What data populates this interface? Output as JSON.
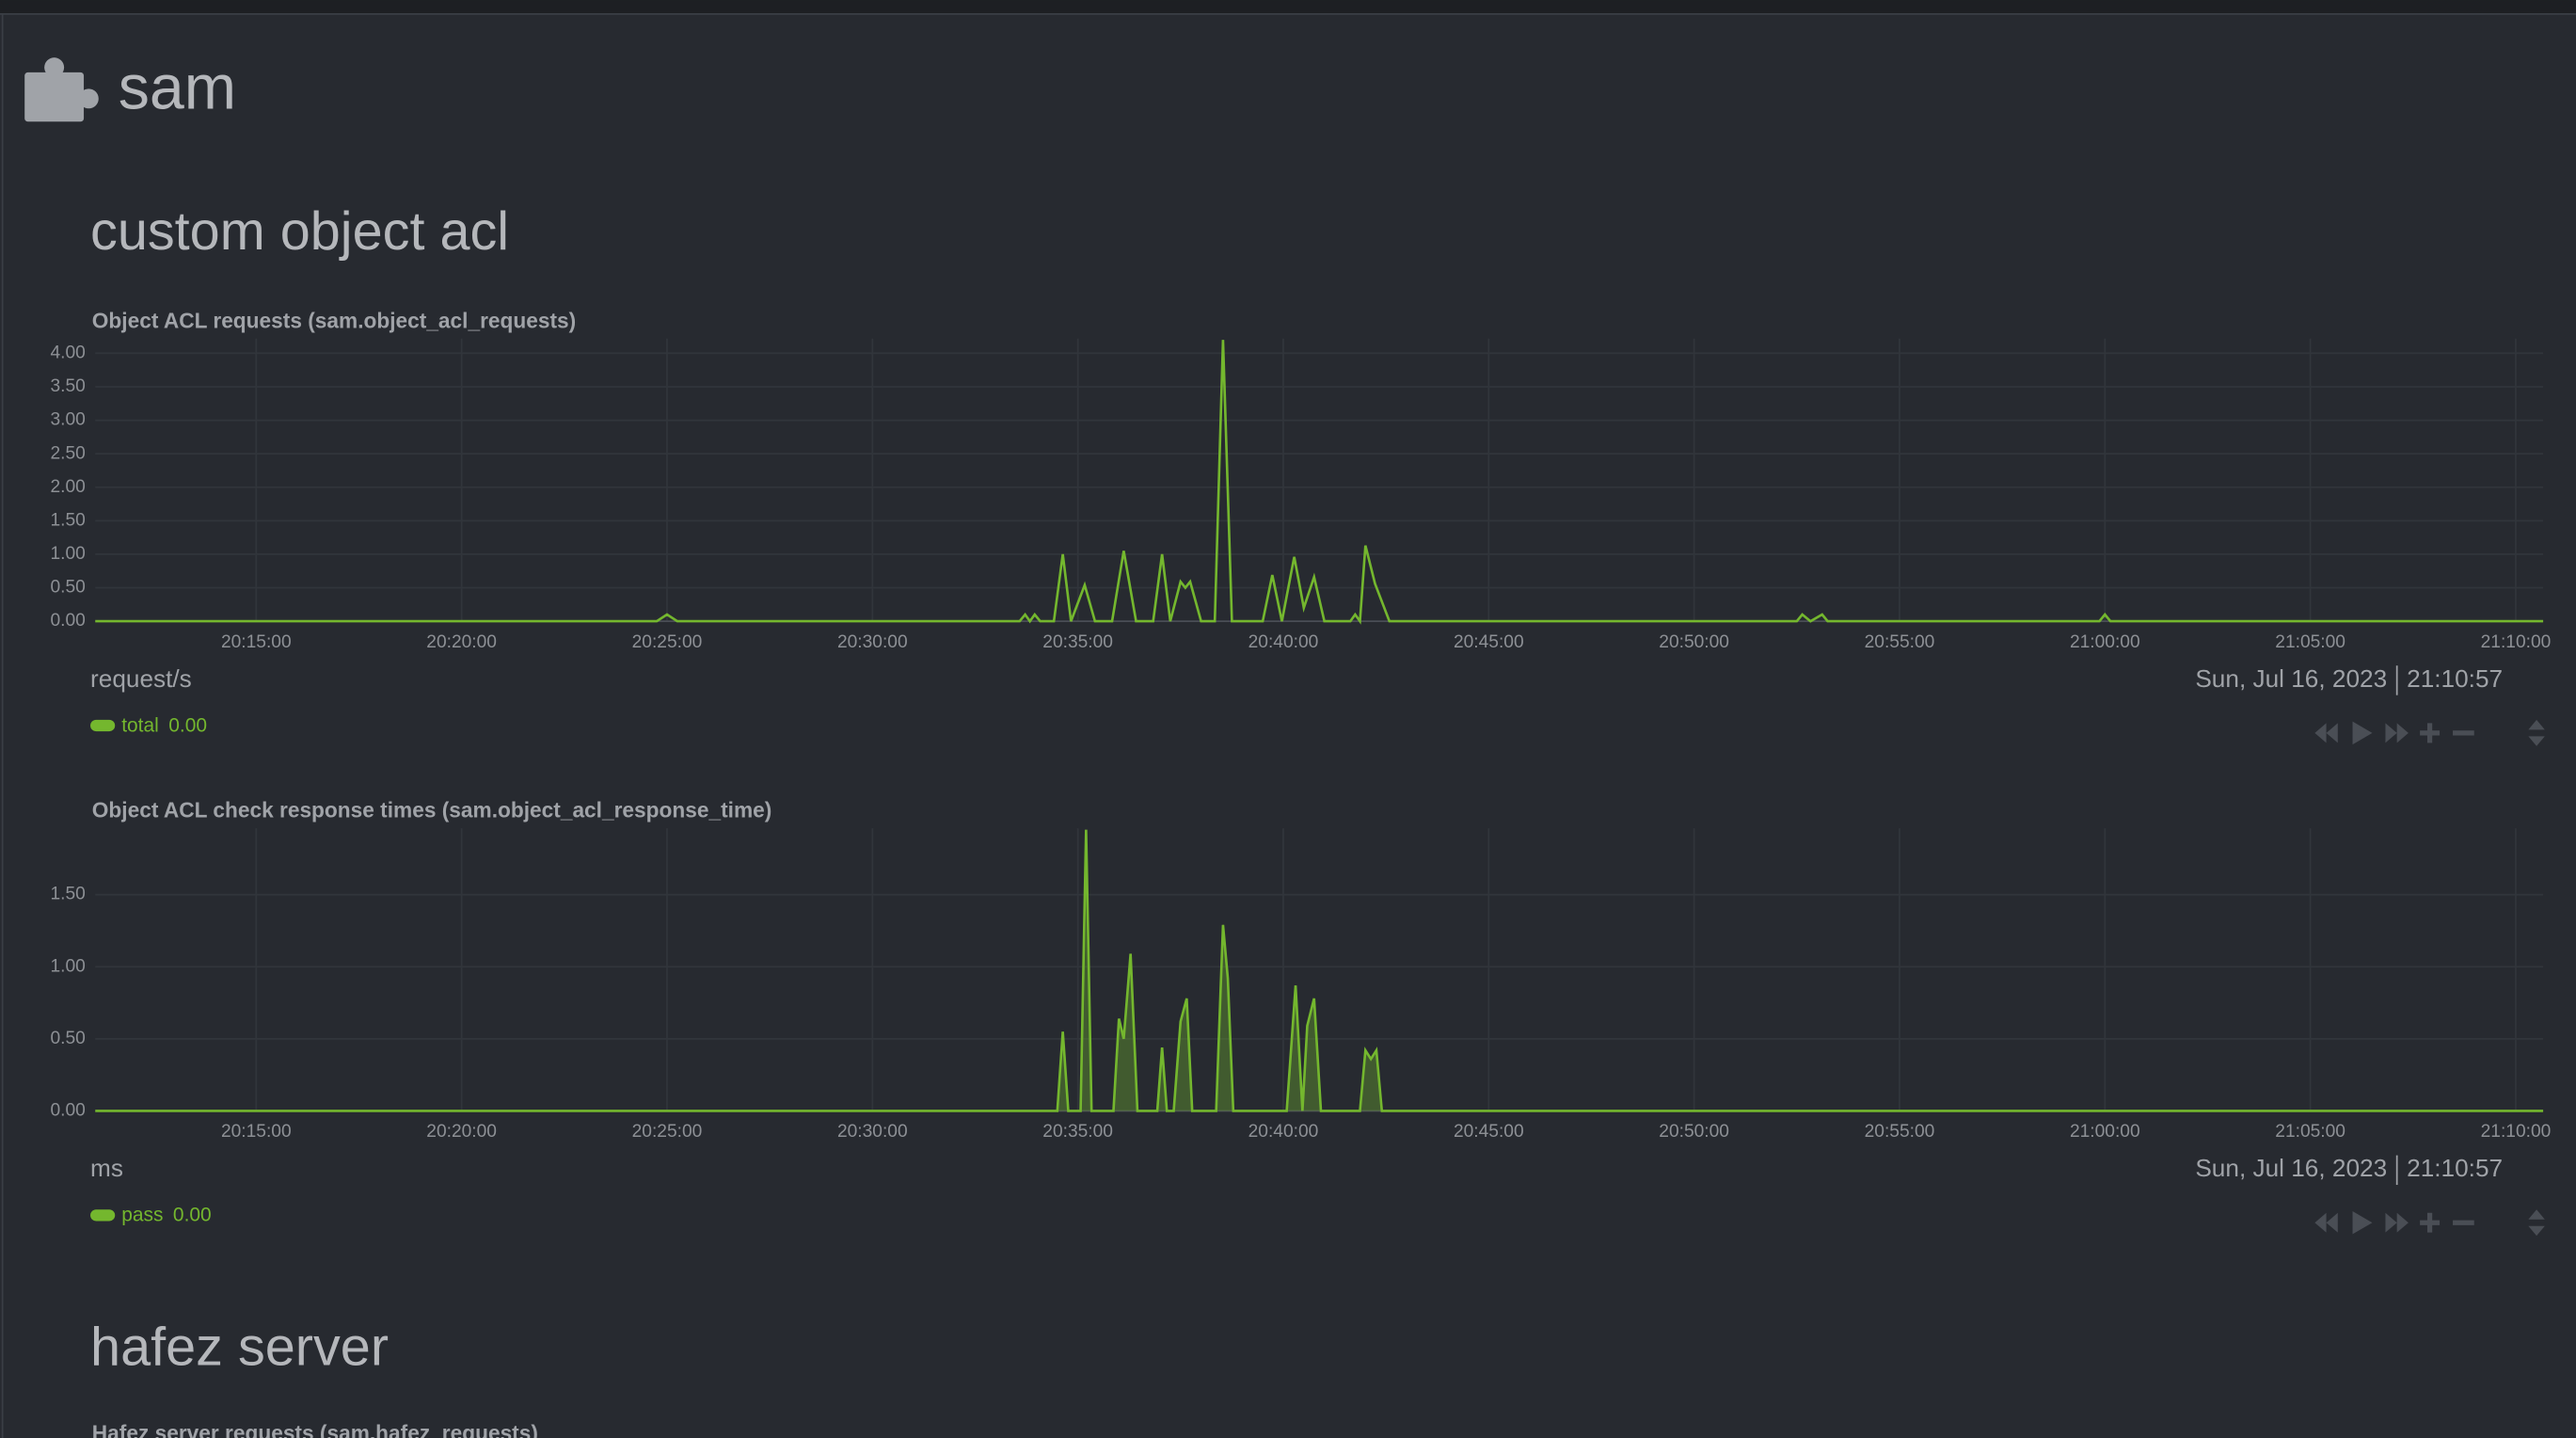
{
  "header": {
    "title": "sam"
  },
  "sections": [
    "custom object acl",
    "hafez server"
  ],
  "next_chart_title": "Hafez server requests (sam.hafez_requests)",
  "chart_data": [
    {
      "type": "line",
      "title": "Object ACL requests (sam.object_acl_requests)",
      "unit": "request/s",
      "date": "Sun, Jul 16, 2023",
      "time": "21:10:57",
      "x": [
        "20:11:05",
        "20:24:45",
        "20:25:00",
        "20:25:15",
        "20:33:35",
        "20:33:43",
        "20:33:50",
        "20:33:57",
        "20:34:05",
        "20:34:25",
        "20:34:38",
        "20:34:50",
        "20:35:10",
        "20:35:25",
        "20:35:50",
        "20:36:07",
        "20:36:25",
        "20:36:50",
        "20:37:03",
        "20:37:15",
        "20:37:30",
        "20:37:37",
        "20:37:44",
        "20:38:00",
        "20:38:20",
        "20:38:32",
        "20:38:45",
        "20:39:30",
        "20:39:44",
        "20:39:58",
        "20:40:16",
        "20:40:30",
        "20:40:45",
        "20:41:00",
        "20:41:38",
        "20:41:45",
        "20:41:52",
        "20:42:00",
        "20:42:14",
        "20:42:35",
        "20:52:30",
        "20:52:38",
        "20:52:50",
        "20:53:07",
        "20:53:15",
        "20:59:52",
        "21:00:00",
        "21:00:08",
        "21:10:40"
      ],
      "series": [
        {
          "name": "total",
          "color": "#74b72e",
          "legend_value": "0.00",
          "values": [
            0,
            0,
            0.1,
            0,
            0,
            0.1,
            0,
            0.1,
            0,
            0,
            1.0,
            0,
            0.54,
            0,
            0,
            1.05,
            0,
            0,
            1.0,
            0,
            0.59,
            0.5,
            0.59,
            0,
            0,
            4.2,
            0,
            0,
            0.69,
            0,
            0.96,
            0.2,
            0.66,
            0,
            0,
            0.1,
            0,
            1.13,
            0.56,
            0,
            0,
            0.1,
            0,
            0.1,
            0,
            0,
            0.1,
            0,
            0
          ]
        }
      ],
      "xlim": [
        "20:11:05",
        "21:10:40"
      ],
      "xticks": [
        "20:15:00",
        "20:20:00",
        "20:25:00",
        "20:30:00",
        "20:35:00",
        "20:40:00",
        "20:45:00",
        "20:50:00",
        "20:55:00",
        "21:00:00",
        "21:05:00",
        "21:10:00"
      ],
      "ylim": [
        0,
        4.22
      ],
      "yticks": [
        {
          "value": 0,
          "label": "0.00"
        },
        {
          "value": 0.5,
          "label": "0.50"
        },
        {
          "value": 1,
          "label": "1.00"
        },
        {
          "value": 1.5,
          "label": "1.50"
        },
        {
          "value": 2,
          "label": "2.00"
        },
        {
          "value": 2.5,
          "label": "2.50"
        },
        {
          "value": 3,
          "label": "3.00"
        },
        {
          "value": 3.5,
          "label": "3.50"
        },
        {
          "value": 4,
          "label": "4.00"
        }
      ],
      "grid": true
    },
    {
      "type": "area",
      "title": "Object ACL check response times (sam.object_acl_response_time)",
      "unit": "ms",
      "date": "Sun, Jul 16, 2023",
      "time": "21:10:57",
      "x": [
        "20:11:05",
        "20:34:30",
        "20:34:38",
        "20:34:46",
        "20:35:04",
        "20:35:12",
        "20:35:20",
        "20:35:52",
        "20:36:00",
        "20:36:07",
        "20:36:17",
        "20:36:27",
        "20:36:56",
        "20:37:03",
        "20:37:10",
        "20:37:20",
        "20:37:30",
        "20:37:39",
        "20:37:47",
        "20:38:22",
        "20:38:32",
        "20:38:39",
        "20:38:47",
        "20:40:05",
        "20:40:18",
        "20:40:28",
        "20:40:35",
        "20:40:45",
        "20:40:55",
        "20:41:52",
        "20:42:00",
        "20:42:08",
        "20:42:16",
        "20:42:24",
        "21:10:40"
      ],
      "series": [
        {
          "name": "pass",
          "color": "#74b72e",
          "legend_value": "0.00",
          "values": [
            0,
            0,
            0.55,
            0,
            0,
            1.95,
            0,
            0,
            0.64,
            0.5,
            1.09,
            0,
            0,
            0.44,
            0,
            0,
            0.62,
            0.78,
            0,
            0,
            1.29,
            0.92,
            0,
            0,
            0.87,
            0,
            0.59,
            0.78,
            0,
            0,
            0.42,
            0.36,
            0.42,
            0,
            0
          ]
        }
      ],
      "xlim": [
        "20:11:05",
        "21:10:40"
      ],
      "xticks": [
        "20:15:00",
        "20:20:00",
        "20:25:00",
        "20:30:00",
        "20:35:00",
        "20:40:00",
        "20:45:00",
        "20:50:00",
        "20:55:00",
        "21:00:00",
        "21:05:00",
        "21:10:00"
      ],
      "ylim": [
        0,
        1.96
      ],
      "yticks": [
        {
          "value": 0,
          "label": "0.00"
        },
        {
          "value": 0.5,
          "label": "0.50"
        },
        {
          "value": 1,
          "label": "1.00"
        },
        {
          "value": 1.5,
          "label": "1.50"
        }
      ],
      "grid": true
    }
  ]
}
